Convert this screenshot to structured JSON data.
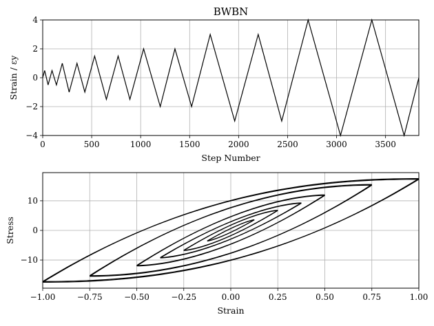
{
  "chart_data": [
    {
      "type": "line",
      "title": "BWBN",
      "xlabel": "Step Number",
      "ylabel": "Strain / εy",
      "xlim": [
        0,
        3840
      ],
      "ylim": [
        -4,
        4
      ],
      "xticks": [
        0,
        500,
        1000,
        1500,
        2000,
        2500,
        3000,
        3500
      ],
      "yticks": [
        -4,
        -2,
        0,
        2,
        4
      ],
      "grid": true,
      "series": [
        {
          "x": [
            0,
            20,
            55,
            95,
            140,
            200,
            270,
            350,
            430,
            530,
            650,
            770,
            890,
            1030,
            1200,
            1350,
            1520,
            1710,
            1960,
            2200,
            2440,
            2710,
            3040,
            3360,
            3690,
            3840
          ],
          "y": [
            0,
            0.5,
            -0.5,
            0.5,
            -0.5,
            1,
            -1,
            1,
            -1,
            1.5,
            -1.5,
            1.5,
            -1.5,
            2,
            -2,
            2,
            -2,
            3,
            -3,
            3,
            -3,
            4,
            -4,
            4,
            -4,
            0
          ]
        }
      ]
    },
    {
      "type": "line",
      "title": "",
      "xlabel": "Strain",
      "ylabel": "Stress",
      "xlim": [
        -1.0,
        1.0
      ],
      "ylim": [
        -19.5,
        19.5
      ],
      "xticks": [
        -1.0,
        -0.75,
        -0.5,
        -0.25,
        0.0,
        0.25,
        0.5,
        0.75,
        1.0
      ],
      "yticks": [
        -10,
        0,
        10
      ],
      "grid": true,
      "hysteresis_loops": [
        {
          "amplitude": 1.0,
          "peak_stress": 17.5,
          "zero_strain_stress": 8.2
        },
        {
          "amplitude": 0.75,
          "peak_stress": 15.5,
          "zero_strain_stress": 6.4
        },
        {
          "amplitude": 0.5,
          "peak_stress": 12.0,
          "zero_strain_stress": 4.0
        },
        {
          "amplitude": 0.375,
          "peak_stress": 9.3,
          "zero_strain_stress": 2.6
        },
        {
          "amplitude": 0.25,
          "peak_stress": 6.8,
          "zero_strain_stress": 1.6
        },
        {
          "amplitude": 0.125,
          "peak_stress": 3.6,
          "zero_strain_stress": 0.6
        }
      ]
    }
  ]
}
